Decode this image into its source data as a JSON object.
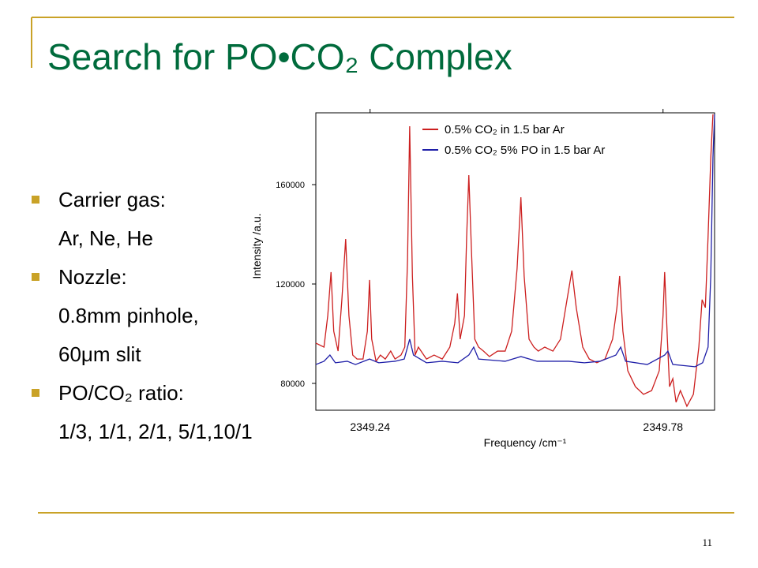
{
  "title": "Search for PO•CO₂ Complex",
  "bullets": [
    {
      "heading": "Carrier gas:",
      "lines": [
        "Ar, Ne, He"
      ]
    },
    {
      "heading": "Nozzle:",
      "lines": [
        "0.8mm pinhole,",
        "60μm slit"
      ]
    },
    {
      "heading": "PO/CO₂ ratio:",
      "lines": [
        "1/3, 1/1, 2/1, 5/1,10/1"
      ]
    }
  ],
  "page_number": "11",
  "chart_data": {
    "type": "line",
    "x_label": "Frequency /cm⁻¹",
    "y_label": "Intensity /a.u.",
    "xlim": [
      2349.14,
      2349.875
    ],
    "xticks": [
      2349.24,
      2349.78
    ],
    "ylim": [
      69200,
      188900
    ],
    "yticks": [
      80000,
      120000,
      160000
    ],
    "series": [
      {
        "name": "0.5% CO₂ in 1.5 bar Ar",
        "color": "#cc1f1f",
        "x": [
          2349.14,
          2349.155,
          2349.162,
          2349.168,
          2349.173,
          2349.181,
          2349.188,
          2349.195,
          2349.201,
          2349.208,
          2349.216,
          2349.227,
          2349.235,
          2349.239,
          2349.243,
          2349.251,
          2349.259,
          2349.268,
          2349.278,
          2349.286,
          2349.297,
          2349.304,
          2349.309,
          2349.313,
          2349.318,
          2349.323,
          2349.329,
          2349.344,
          2349.358,
          2349.373,
          2349.387,
          2349.396,
          2349.401,
          2349.406,
          2349.414,
          2349.418,
          2349.422,
          2349.427,
          2349.433,
          2349.44,
          2349.449,
          2349.46,
          2349.475,
          2349.489,
          2349.501,
          2349.511,
          2349.518,
          2349.524,
          2349.533,
          2349.542,
          2349.55,
          2349.562,
          2349.577,
          2349.591,
          2349.603,
          2349.612,
          2349.62,
          2349.632,
          2349.644,
          2349.658,
          2349.673,
          2349.687,
          2349.695,
          2349.7,
          2349.706,
          2349.715,
          2349.729,
          2349.744,
          2349.759,
          2349.773,
          2349.78,
          2349.783,
          2349.788,
          2349.792,
          2349.798,
          2349.804,
          2349.812,
          2349.824,
          2349.836,
          2349.846,
          2349.852,
          2349.858,
          2349.863,
          2349.868,
          2349.872
        ],
        "values": [
          96200,
          94600,
          107300,
          124800,
          101000,
          93000,
          113700,
          138100,
          107300,
          91400,
          89800,
          89800,
          101000,
          121600,
          97800,
          88900,
          91400,
          89800,
          93000,
          89800,
          91400,
          94600,
          129500,
          183500,
          123200,
          91400,
          94600,
          89800,
          91400,
          89800,
          94600,
          104100,
          116200,
          97800,
          107300,
          139000,
          163800,
          132700,
          97800,
          94600,
          93000,
          90800,
          93000,
          93000,
          101000,
          126300,
          154900,
          123200,
          97800,
          94600,
          93000,
          94600,
          93000,
          97800,
          113700,
          125400,
          110500,
          94600,
          89800,
          88300,
          89800,
          97800,
          110500,
          123200,
          101000,
          85100,
          78700,
          75600,
          77100,
          85100,
          107300,
          124800,
          97800,
          78700,
          81900,
          72400,
          77100,
          70800,
          75600,
          94600,
          113700,
          110500,
          139000,
          170800,
          188300
        ]
      },
      {
        "name": "0.5% CO₂ 5% PO in 1.5 bar Ar",
        "color": "#1f1fa8",
        "x": [
          2349.14,
          2349.155,
          2349.166,
          2349.176,
          2349.198,
          2349.213,
          2349.239,
          2349.256,
          2349.286,
          2349.303,
          2349.313,
          2349.32,
          2349.344,
          2349.373,
          2349.402,
          2349.422,
          2349.431,
          2349.44,
          2349.489,
          2349.518,
          2349.548,
          2349.606,
          2349.635,
          2349.664,
          2349.693,
          2349.702,
          2349.711,
          2349.751,
          2349.783,
          2349.789,
          2349.798,
          2349.839,
          2349.853,
          2349.863,
          2349.868,
          2349.872,
          2349.875
        ],
        "values": [
          87600,
          88900,
          91400,
          88300,
          88900,
          87600,
          89800,
          88300,
          88900,
          89800,
          97800,
          91400,
          88300,
          88900,
          88300,
          91400,
          94600,
          89800,
          88900,
          90800,
          88900,
          88900,
          88300,
          88900,
          91400,
          94600,
          88900,
          87600,
          91400,
          93000,
          87600,
          86700,
          88300,
          94600,
          123200,
          170800,
          188300
        ]
      }
    ]
  }
}
